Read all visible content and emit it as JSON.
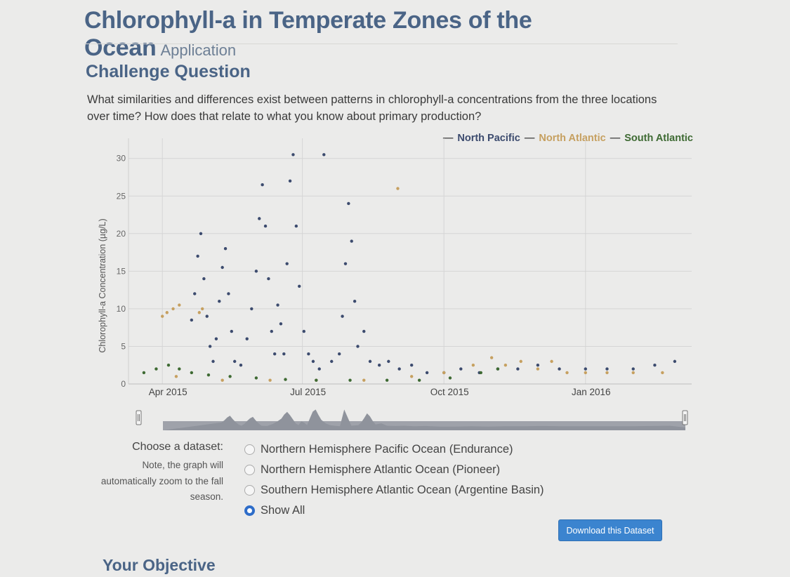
{
  "header": {
    "title": "Chlorophyll-a in Temperate Zones of the Ocean",
    "subtitle": "Application"
  },
  "challenge": {
    "heading": "Challenge Question",
    "question": "What similarities and differences exist between patterns in chlorophyll-a concentrations from the three locations over time? How does that relate to what you know about primary production?"
  },
  "legend": {
    "items": [
      {
        "label": "North Pacific",
        "color": "#3c4b6e"
      },
      {
        "label": "North Atlantic",
        "color": "#c6a060"
      },
      {
        "label": "South Atlantic",
        "color": "#3e6a33"
      }
    ],
    "dash": "—"
  },
  "chart_data": {
    "type": "scatter",
    "ylabel": "Chlorophyll-a Concentration (µg/L)",
    "ylim": [
      0,
      31
    ],
    "yticks": [
      "0",
      "5",
      "10",
      "15",
      "20",
      "25",
      "30"
    ],
    "xlim": [
      "2015-03-10",
      "2016-03-10"
    ],
    "xticks": [
      {
        "label": "Apr 2015",
        "date": "2015-04-01"
      },
      {
        "label": "Jul 2015",
        "date": "2015-07-01"
      },
      {
        "label": "Oct 2015",
        "date": "2015-10-01"
      },
      {
        "label": "Jan 2016",
        "date": "2016-01-01"
      }
    ],
    "grid": true,
    "legend_position": "top-right",
    "series": [
      {
        "name": "North Pacific",
        "color": "#3c4b6e",
        "points": [
          [
            "2015-04-20",
            8.5
          ],
          [
            "2015-04-22",
            12
          ],
          [
            "2015-04-24",
            17
          ],
          [
            "2015-04-26",
            20
          ],
          [
            "2015-04-28",
            14
          ],
          [
            "2015-04-30",
            9
          ],
          [
            "2015-05-02",
            5
          ],
          [
            "2015-05-04",
            3
          ],
          [
            "2015-05-06",
            6
          ],
          [
            "2015-05-08",
            11
          ],
          [
            "2015-05-10",
            15.5
          ],
          [
            "2015-05-12",
            18
          ],
          [
            "2015-05-14",
            12
          ],
          [
            "2015-05-16",
            7
          ],
          [
            "2015-05-18",
            3
          ],
          [
            "2015-05-22",
            2.5
          ],
          [
            "2015-05-26",
            6
          ],
          [
            "2015-05-29",
            10
          ],
          [
            "2015-06-01",
            15
          ],
          [
            "2015-06-03",
            22
          ],
          [
            "2015-06-05",
            26.5
          ],
          [
            "2015-06-07",
            21
          ],
          [
            "2015-06-09",
            14
          ],
          [
            "2015-06-11",
            7
          ],
          [
            "2015-06-13",
            4
          ],
          [
            "2015-06-15",
            10.5
          ],
          [
            "2015-06-17",
            8
          ],
          [
            "2015-06-19",
            4
          ],
          [
            "2015-06-21",
            16
          ],
          [
            "2015-06-23",
            27
          ],
          [
            "2015-06-25",
            30.5
          ],
          [
            "2015-06-27",
            21
          ],
          [
            "2015-06-29",
            13
          ],
          [
            "2015-07-02",
            7
          ],
          [
            "2015-07-05",
            4
          ],
          [
            "2015-07-08",
            3
          ],
          [
            "2015-07-12",
            2
          ],
          [
            "2015-07-15",
            30.5
          ],
          [
            "2015-07-20",
            3
          ],
          [
            "2015-07-25",
            4
          ],
          [
            "2015-07-27",
            9
          ],
          [
            "2015-07-29",
            16
          ],
          [
            "2015-07-31",
            24
          ],
          [
            "2015-08-02",
            19
          ],
          [
            "2015-08-04",
            11
          ],
          [
            "2015-08-06",
            5
          ],
          [
            "2015-08-10",
            7
          ],
          [
            "2015-08-14",
            3
          ],
          [
            "2015-08-20",
            2.5
          ],
          [
            "2015-08-26",
            3
          ],
          [
            "2015-09-02",
            2
          ],
          [
            "2015-09-10",
            2.5
          ],
          [
            "2015-09-20",
            1.5
          ],
          [
            "2015-10-01",
            1.5
          ],
          [
            "2015-10-12",
            2
          ],
          [
            "2015-10-24",
            1.5
          ],
          [
            "2015-11-05",
            2
          ],
          [
            "2015-11-18",
            2
          ],
          [
            "2015-12-01",
            2.5
          ],
          [
            "2015-12-15",
            2
          ],
          [
            "2016-01-01",
            2
          ],
          [
            "2016-01-15",
            2
          ],
          [
            "2016-02-01",
            2
          ],
          [
            "2016-02-15",
            2.5
          ],
          [
            "2016-02-28",
            3
          ]
        ]
      },
      {
        "name": "North Atlantic",
        "color": "#c6a060",
        "points": [
          [
            "2015-04-01",
            9
          ],
          [
            "2015-04-04",
            9.5
          ],
          [
            "2015-04-08",
            10
          ],
          [
            "2015-04-12",
            10.5
          ],
          [
            "2015-04-25",
            9.5
          ],
          [
            "2015-04-27",
            10
          ],
          [
            "2015-04-10",
            1
          ],
          [
            "2015-05-10",
            0.5
          ],
          [
            "2015-06-10",
            0.5
          ],
          [
            "2015-07-10",
            0.5
          ],
          [
            "2015-08-10",
            0.5
          ],
          [
            "2015-09-10",
            1
          ],
          [
            "2015-10-01",
            1.5
          ],
          [
            "2015-09-01",
            26
          ],
          [
            "2015-10-20",
            2.5
          ],
          [
            "2015-11-01",
            3.5
          ],
          [
            "2015-11-10",
            2.5
          ],
          [
            "2015-11-20",
            3
          ],
          [
            "2015-12-01",
            2
          ],
          [
            "2015-12-10",
            3
          ],
          [
            "2015-12-20",
            1.5
          ],
          [
            "2016-01-01",
            1.5
          ],
          [
            "2016-01-15",
            1.5
          ],
          [
            "2016-02-01",
            1.5
          ],
          [
            "2016-02-20",
            1.5
          ]
        ]
      },
      {
        "name": "South Atlantic",
        "color": "#3e6a33",
        "points": [
          [
            "2015-03-20",
            1.5
          ],
          [
            "2015-03-28",
            2
          ],
          [
            "2015-04-05",
            2.5
          ],
          [
            "2015-04-12",
            2
          ],
          [
            "2015-04-20",
            1.5
          ],
          [
            "2015-05-01",
            1.2
          ],
          [
            "2015-05-15",
            1
          ],
          [
            "2015-06-01",
            0.8
          ],
          [
            "2015-06-20",
            0.6
          ],
          [
            "2015-07-10",
            0.5
          ],
          [
            "2015-08-01",
            0.5
          ],
          [
            "2015-08-25",
            0.5
          ],
          [
            "2015-09-15",
            0.5
          ],
          [
            "2015-10-05",
            0.8
          ],
          [
            "2015-10-25",
            1.5
          ],
          [
            "2015-11-05",
            2
          ]
        ]
      }
    ]
  },
  "navigator": {
    "left_handle": "left-range-handle",
    "right_handle": "right-range-handle"
  },
  "dataset_chooser": {
    "label": "Choose a dataset:",
    "note": "Note, the graph will automatically zoom to the fall season.",
    "options": [
      {
        "label": "Northern Hemisphere Pacific Ocean (Endurance)",
        "checked": false
      },
      {
        "label": "Northern Hemisphere Atlantic Ocean (Pioneer)",
        "checked": false
      },
      {
        "label": "Southern Hemisphere Atlantic Ocean (Argentine Basin)",
        "checked": false
      },
      {
        "label": "Show All",
        "checked": true
      }
    ]
  },
  "download_button": "Download this Dataset",
  "objective": {
    "heading": "Your Objective"
  }
}
